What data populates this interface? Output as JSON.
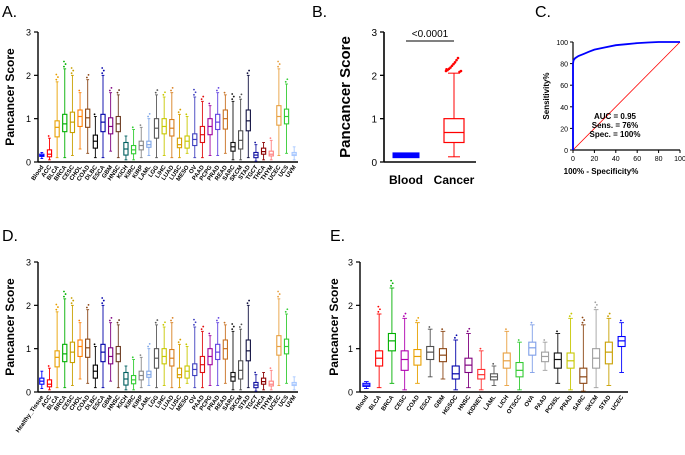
{
  "panels": {
    "A": {
      "letter": "A."
    },
    "B": {
      "letter": "B."
    },
    "C": {
      "letter": "C."
    },
    "D": {
      "letter": "D."
    },
    "E": {
      "letter": "E."
    }
  },
  "colors": {
    "blood": "#0000ff",
    "cancer": "#ff0000",
    "roc_line": "#0000ff",
    "diagonal": "#ff0000"
  },
  "chart_data": [
    {
      "id": "A",
      "type": "box",
      "ylabel": "Pancancer Score",
      "ylim": [
        0,
        3
      ],
      "yticks": [
        0,
        1,
        2,
        3
      ],
      "categories": [
        "Blood",
        "ACC",
        "BLCA",
        "BRCA",
        "CESC",
        "CHOL",
        "COAD",
        "DLBC",
        "ESCA",
        "GBM",
        "HNSC",
        "KICH",
        "KIRC",
        "KIRP",
        "LAML",
        "LGG",
        "LIHC",
        "LUAD",
        "LUSC",
        "MESO",
        "OV",
        "PAAD",
        "PCPG",
        "PRAD",
        "READ",
        "SARC",
        "SKCM",
        "STAD",
        "TGCT",
        "THCA",
        "THYM",
        "UCEC",
        "UCS",
        "UVM"
      ],
      "box_colors": [
        "#0000ff",
        "#ff0000",
        "#e8a000",
        "#00b000",
        "#c8a000",
        "#ff7f00",
        "#8b4513",
        "#000000",
        "#0000aa",
        "#7f007f",
        "#6b3a1f",
        "#006060",
        "#33cc33",
        "#888888",
        "#7fa6e8",
        "#5a5a5a",
        "#c8c800",
        "#d87f1f",
        "#d8a000",
        "#c8c800",
        "#3f3fbf",
        "#e01010",
        "#a000a0",
        "#6040e0",
        "#c87020",
        "#101010",
        "#505050",
        "#101040",
        "#1010a0",
        "#8b0000",
        "#ff8080",
        "#e8a040",
        "#33cc33",
        "#a8c8ff"
      ],
      "q1": [
        0.13,
        0.12,
        0.58,
        0.7,
        0.68,
        0.82,
        0.8,
        0.32,
        0.7,
        0.65,
        0.7,
        0.16,
        0.19,
        0.28,
        0.34,
        0.55,
        0.65,
        0.6,
        0.33,
        0.32,
        0.38,
        0.45,
        0.63,
        0.75,
        0.76,
        0.25,
        0.3,
        0.72,
        0.1,
        0.18,
        0.14,
        0.85,
        0.88,
        0.15
      ],
      "median": [
        0.15,
        0.18,
        0.8,
        0.88,
        0.92,
        1.05,
        1.02,
        0.48,
        0.92,
        0.82,
        0.88,
        0.3,
        0.28,
        0.38,
        0.4,
        0.78,
        0.82,
        0.78,
        0.4,
        0.48,
        0.52,
        0.63,
        0.82,
        0.92,
        1.0,
        0.35,
        0.5,
        0.95,
        0.16,
        0.24,
        0.18,
        1.05,
        1.05,
        0.18
      ],
      "q3": [
        0.18,
        0.28,
        0.95,
        1.1,
        1.15,
        1.2,
        1.22,
        0.62,
        1.1,
        1.02,
        1.05,
        0.45,
        0.38,
        0.48,
        0.48,
        1.0,
        1.0,
        0.98,
        0.55,
        0.6,
        0.65,
        0.82,
        1.0,
        1.1,
        1.2,
        0.45,
        0.72,
        1.2,
        0.22,
        0.32,
        0.25,
        1.3,
        1.22,
        0.22
      ],
      "whisk_lo": [
        0.08,
        0.05,
        0.1,
        0.1,
        0.15,
        0.3,
        0.2,
        0.1,
        0.1,
        0.25,
        0.1,
        0.05,
        0.05,
        0.1,
        0.15,
        0.1,
        0.15,
        0.1,
        0.1,
        0.2,
        0.1,
        0.1,
        0.15,
        0.15,
        0.2,
        0.05,
        0.05,
        0.1,
        0.02,
        0.05,
        0.05,
        0.15,
        0.2,
        0.05
      ],
      "whisk_hi": [
        0.22,
        0.55,
        1.85,
        2.15,
        2.0,
        1.6,
        1.9,
        1.05,
        2.0,
        1.6,
        1.55,
        0.6,
        0.75,
        0.8,
        1.0,
        1.55,
        1.5,
        1.6,
        1.1,
        1.05,
        1.5,
        1.4,
        1.3,
        1.6,
        1.55,
        1.4,
        1.45,
        2.0,
        0.4,
        0.45,
        0.5,
        2.15,
        1.8,
        0.35
      ]
    },
    {
      "id": "B",
      "type": "box",
      "ylabel": "Pancancer Score",
      "ylim": [
        0,
        3
      ],
      "yticks": [
        0,
        1,
        2,
        3
      ],
      "categories": [
        "Blood",
        "Cancer"
      ],
      "q1": [
        0.14,
        0.45
      ],
      "median": [
        0.16,
        0.68
      ],
      "q3": [
        0.18,
        1.0
      ],
      "whisk_lo": [
        0.1,
        0.12
      ],
      "whisk_hi": [
        0.21,
        2.05
      ],
      "annotation": "<0.0001"
    },
    {
      "id": "C",
      "type": "line",
      "xlabel": "100% - Specificity%",
      "ylabel": "Sensitivity%",
      "xlim": [
        0,
        100
      ],
      "ylim": [
        0,
        100
      ],
      "xticks": [
        0,
        20,
        40,
        60,
        80,
        100
      ],
      "yticks": [
        0,
        20,
        40,
        60,
        80,
        100
      ],
      "x": [
        0,
        0.5,
        2,
        5,
        10,
        15,
        20,
        30,
        40,
        50,
        60,
        70,
        80,
        90,
        100
      ],
      "y": [
        80,
        83,
        85,
        87,
        89,
        91,
        93,
        95,
        97,
        98,
        99,
        99.5,
        100,
        100,
        100
      ],
      "stats": [
        "AUC = 0.95",
        "Sens. = 76%",
        "Spec. = 100%"
      ]
    },
    {
      "id": "D",
      "type": "box",
      "ylabel": "Pancancer Score",
      "ylim": [
        0,
        3
      ],
      "yticks": [
        0,
        1,
        2,
        3
      ],
      "categories": [
        "Healthy_Tissue",
        "ACC",
        "BLCA",
        "BRCA",
        "CESC",
        "CHOL",
        "COAD",
        "DLBC",
        "ESCA",
        "GBM",
        "HNSC",
        "KICH",
        "KIRC",
        "KIRP",
        "LAML",
        "LGG",
        "LIHC",
        "LUAD",
        "LUSC",
        "MESO",
        "OV",
        "PAAD",
        "PCPG",
        "PRAD",
        "READ",
        "SARC",
        "SKCM",
        "STAD",
        "TGCT",
        "THCA",
        "THYM",
        "UCEC",
        "UCS",
        "UVM"
      ],
      "box_colors": [
        "#0000ff",
        "#ff0000",
        "#e8a000",
        "#00b000",
        "#c8a000",
        "#ff7f00",
        "#8b4513",
        "#000000",
        "#0000aa",
        "#7f007f",
        "#6b3a1f",
        "#006060",
        "#33cc33",
        "#888888",
        "#7fa6e8",
        "#5a5a5a",
        "#c8c800",
        "#d87f1f",
        "#d8a000",
        "#c8c800",
        "#3f3fbf",
        "#e01010",
        "#a000a0",
        "#6040e0",
        "#c87020",
        "#101010",
        "#505050",
        "#101040",
        "#1010a0",
        "#8b0000",
        "#ff8080",
        "#e8a040",
        "#33cc33",
        "#a8c8ff"
      ],
      "q1": [
        0.18,
        0.12,
        0.58,
        0.7,
        0.68,
        0.82,
        0.8,
        0.32,
        0.7,
        0.65,
        0.7,
        0.16,
        0.19,
        0.28,
        0.34,
        0.55,
        0.65,
        0.6,
        0.33,
        0.32,
        0.38,
        0.45,
        0.63,
        0.75,
        0.76,
        0.25,
        0.3,
        0.72,
        0.1,
        0.18,
        0.14,
        0.85,
        0.88,
        0.15
      ],
      "median": [
        0.25,
        0.18,
        0.8,
        0.88,
        0.92,
        1.05,
        1.02,
        0.48,
        0.92,
        0.82,
        0.88,
        0.3,
        0.28,
        0.38,
        0.4,
        0.78,
        0.82,
        0.78,
        0.4,
        0.48,
        0.52,
        0.63,
        0.82,
        0.92,
        1.0,
        0.35,
        0.5,
        0.95,
        0.16,
        0.24,
        0.18,
        1.05,
        1.05,
        0.18
      ],
      "q3": [
        0.32,
        0.28,
        0.95,
        1.1,
        1.15,
        1.2,
        1.22,
        0.62,
        1.1,
        1.02,
        1.05,
        0.45,
        0.38,
        0.48,
        0.48,
        1.0,
        1.0,
        0.98,
        0.55,
        0.6,
        0.65,
        0.82,
        1.0,
        1.1,
        1.2,
        0.45,
        0.72,
        1.2,
        0.22,
        0.32,
        0.25,
        1.3,
        1.22,
        0.22
      ],
      "whisk_lo": [
        0.08,
        0.05,
        0.1,
        0.1,
        0.15,
        0.3,
        0.2,
        0.1,
        0.1,
        0.25,
        0.1,
        0.05,
        0.05,
        0.1,
        0.15,
        0.1,
        0.15,
        0.1,
        0.1,
        0.2,
        0.1,
        0.1,
        0.15,
        0.15,
        0.2,
        0.05,
        0.05,
        0.1,
        0.02,
        0.05,
        0.05,
        0.15,
        0.2,
        0.05
      ],
      "whisk_hi": [
        0.48,
        0.55,
        1.85,
        2.15,
        2.0,
        1.6,
        1.9,
        1.05,
        2.0,
        1.6,
        1.55,
        0.6,
        0.75,
        0.8,
        1.0,
        1.55,
        1.5,
        1.6,
        1.1,
        1.05,
        1.5,
        1.4,
        1.3,
        1.6,
        1.55,
        1.4,
        1.45,
        2.0,
        0.4,
        0.45,
        0.5,
        2.15,
        1.8,
        0.35
      ]
    },
    {
      "id": "E",
      "type": "box",
      "ylabel": "Pancancer Score",
      "ylim": [
        0,
        3
      ],
      "yticks": [
        0,
        1,
        2,
        3
      ],
      "categories": [
        "Blood",
        "BLCA",
        "BRCA",
        "CESC",
        "COAD",
        "ESCA",
        "GBM",
        "HGSOC",
        "HNSC",
        "KIDNEY",
        "LAML",
        "LICH",
        "OTSCC",
        "OVA",
        "PAAD",
        "PCNSL",
        "PRAD",
        "SARC",
        "SKCM",
        "STAD",
        "UCEC"
      ],
      "box_colors": [
        "#0000ff",
        "#ff0000",
        "#00b000",
        "#b000b0",
        "#e8a000",
        "#505050",
        "#8b4513",
        "#0000aa",
        "#7f007f",
        "#ff3030",
        "#5a5a5a",
        "#e8a040",
        "#33cc33",
        "#7f9fe8",
        "#a0a0a0",
        "#101010",
        "#c8c800",
        "#8b4513",
        "#a0a0a0",
        "#c8a000",
        "#0000ff"
      ],
      "q1": [
        0.13,
        0.6,
        0.95,
        0.5,
        0.62,
        0.75,
        0.7,
        0.3,
        0.45,
        0.3,
        0.28,
        0.55,
        0.35,
        0.85,
        0.7,
        0.55,
        0.55,
        0.2,
        0.55,
        0.65,
        1.05
      ],
      "median": [
        0.16,
        0.78,
        1.18,
        0.75,
        0.82,
        0.92,
        0.85,
        0.42,
        0.62,
        0.4,
        0.35,
        0.72,
        0.5,
        1.02,
        0.82,
        0.75,
        0.72,
        0.35,
        0.78,
        0.92,
        1.18
      ],
      "q3": [
        0.2,
        0.95,
        1.35,
        0.95,
        0.98,
        1.05,
        1.0,
        0.6,
        0.78,
        0.52,
        0.42,
        0.9,
        0.68,
        1.15,
        0.92,
        0.9,
        0.9,
        0.55,
        1.0,
        1.15,
        1.28
      ],
      "whisk_lo": [
        0.08,
        0.1,
        0.2,
        0.05,
        0.2,
        0.35,
        0.3,
        0.05,
        0.1,
        0.05,
        0.15,
        0.15,
        0.05,
        0.45,
        0.5,
        0.2,
        0.05,
        0.02,
        0.1,
        0.15,
        0.45
      ],
      "whisk_hi": [
        0.24,
        1.8,
        2.4,
        1.7,
        1.6,
        1.45,
        1.4,
        1.2,
        1.35,
        0.95,
        0.6,
        1.4,
        1.15,
        1.55,
        1.15,
        1.35,
        1.7,
        1.55,
        1.9,
        1.7,
        1.6
      ]
    }
  ]
}
